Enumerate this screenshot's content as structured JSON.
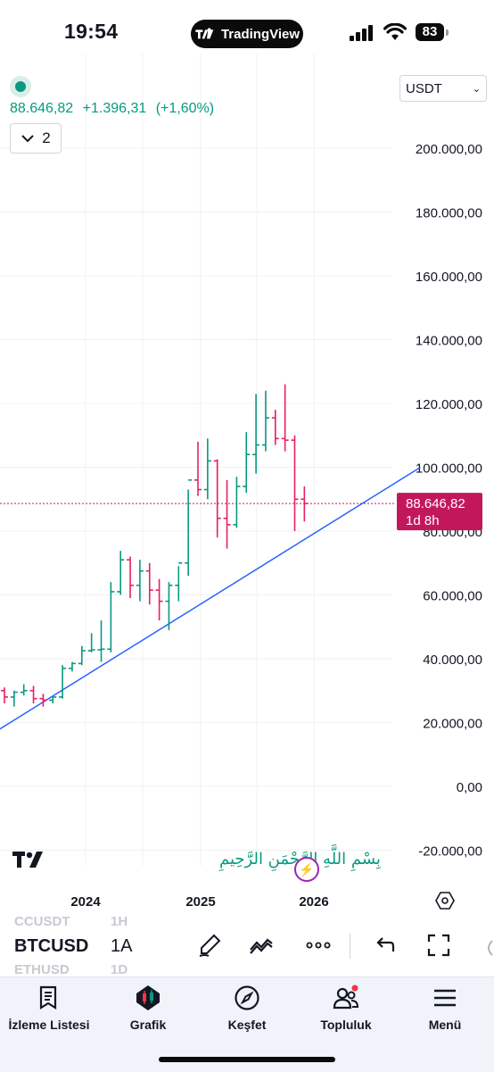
{
  "status_bar": {
    "time": "19:54",
    "app_pill": "TradingView",
    "battery": "83"
  },
  "header": {
    "price": "88.646,82",
    "change": "+1.396,31",
    "change_pct": "(+1,60%)",
    "collapse_count": "2",
    "currency": "USDT"
  },
  "colors": {
    "up": "#089981",
    "down": "#f23645",
    "down_bar": "#e91e63",
    "trend": "#2962ff",
    "price_label": "#c2185b"
  },
  "chart_data": {
    "type": "ohlc",
    "y_ticks": [
      "200.000,00",
      "180.000,00",
      "160.000,00",
      "140.000,00",
      "120.000,00",
      "100.000,00",
      "80.000,00",
      "60.000,00",
      "40.000,00",
      "20.000,00",
      "0,00",
      "-20.000,00"
    ],
    "y_tick_values": [
      200000,
      180000,
      160000,
      140000,
      120000,
      100000,
      80000,
      60000,
      40000,
      20000,
      0,
      -20000
    ],
    "x_ticks": [
      "2024",
      "2025",
      "2026"
    ],
    "last_price_label": "88.646,82",
    "countdown_label": "1d 8h",
    "last_price": 88646.82,
    "bars": [
      {
        "o": 30000,
        "h": 31000,
        "l": 26000,
        "c": 28000
      },
      {
        "o": 28000,
        "h": 30000,
        "l": 25000,
        "c": 29500
      },
      {
        "o": 29500,
        "h": 32000,
        "l": 28500,
        "c": 30000
      },
      {
        "o": 30000,
        "h": 31500,
        "l": 26000,
        "c": 27500
      },
      {
        "o": 27500,
        "h": 29000,
        "l": 25000,
        "c": 27000
      },
      {
        "o": 27000,
        "h": 28500,
        "l": 26000,
        "c": 28000
      },
      {
        "o": 28000,
        "h": 38000,
        "l": 27500,
        "c": 37000
      },
      {
        "o": 37000,
        "h": 39000,
        "l": 36000,
        "c": 38500
      },
      {
        "o": 38500,
        "h": 44000,
        "l": 38000,
        "c": 42500
      },
      {
        "o": 42500,
        "h": 48000,
        "l": 42000,
        "c": 42800
      },
      {
        "o": 42800,
        "h": 52000,
        "l": 39000,
        "c": 43000
      },
      {
        "o": 43000,
        "h": 64000,
        "l": 42000,
        "c": 61000
      },
      {
        "o": 61000,
        "h": 73800,
        "l": 60000,
        "c": 71000
      },
      {
        "o": 71000,
        "h": 72000,
        "l": 59000,
        "c": 63000
      },
      {
        "o": 63000,
        "h": 71000,
        "l": 58000,
        "c": 67500
      },
      {
        "o": 67500,
        "h": 70000,
        "l": 57000,
        "c": 61500
      },
      {
        "o": 61500,
        "h": 65000,
        "l": 52000,
        "c": 58000
      },
      {
        "o": 58000,
        "h": 64000,
        "l": 49000,
        "c": 63000
      },
      {
        "o": 63000,
        "h": 69000,
        "l": 58000,
        "c": 70000
      },
      {
        "o": 70000,
        "h": 93000,
        "l": 66000,
        "c": 96000
      },
      {
        "o": 96000,
        "h": 108000,
        "l": 91000,
        "c": 93000
      },
      {
        "o": 93000,
        "h": 109000,
        "l": 90000,
        "c": 102000
      },
      {
        "o": 102000,
        "h": 102500,
        "l": 78000,
        "c": 84000
      },
      {
        "o": 84000,
        "h": 96000,
        "l": 74500,
        "c": 82000
      },
      {
        "o": 82000,
        "h": 97000,
        "l": 81000,
        "c": 94000
      },
      {
        "o": 94000,
        "h": 111000,
        "l": 92000,
        "c": 104000
      },
      {
        "o": 104000,
        "h": 123000,
        "l": 98000,
        "c": 107000
      },
      {
        "o": 107000,
        "h": 124000,
        "l": 105000,
        "c": 115500
      },
      {
        "o": 115500,
        "h": 118000,
        "l": 107000,
        "c": 109000
      },
      {
        "o": 109000,
        "h": 126000,
        "l": 105000,
        "c": 108500
      },
      {
        "o": 108500,
        "h": 110000,
        "l": 80000,
        "c": 90000
      },
      {
        "o": 90000,
        "h": 94000,
        "l": 83000,
        "c": 88646.82
      }
    ],
    "trendline": {
      "start": {
        "bar": -1,
        "value": 17000
      },
      "end": {
        "bar": 43,
        "value": 100000
      }
    }
  },
  "watermark": {
    "arabic": "بِسْمِ اللَّهِ الرَّحْمَنِ الرَّحِيمِ"
  },
  "symbol_bar": {
    "ghost_above_sym": "CCUSDT",
    "ghost_above_tf": "1H",
    "symbol": "BTCUSD",
    "timeframe": "1A",
    "ghost_below_sym": "ETHUSD",
    "ghost_below_tf": "1D"
  },
  "toolbar_icons": [
    "brush-icon",
    "drawings-icon",
    "more-icon",
    "undo-icon",
    "fullscreen-icon"
  ],
  "bottom_nav": [
    {
      "label": "İzleme Listesi",
      "icon": "watchlist-icon"
    },
    {
      "label": "Grafik",
      "icon": "chart-icon"
    },
    {
      "label": "Keşfet",
      "icon": "compass-icon"
    },
    {
      "label": "Topluluk",
      "icon": "community-icon"
    },
    {
      "label": "Menü",
      "icon": "menu-icon"
    }
  ]
}
